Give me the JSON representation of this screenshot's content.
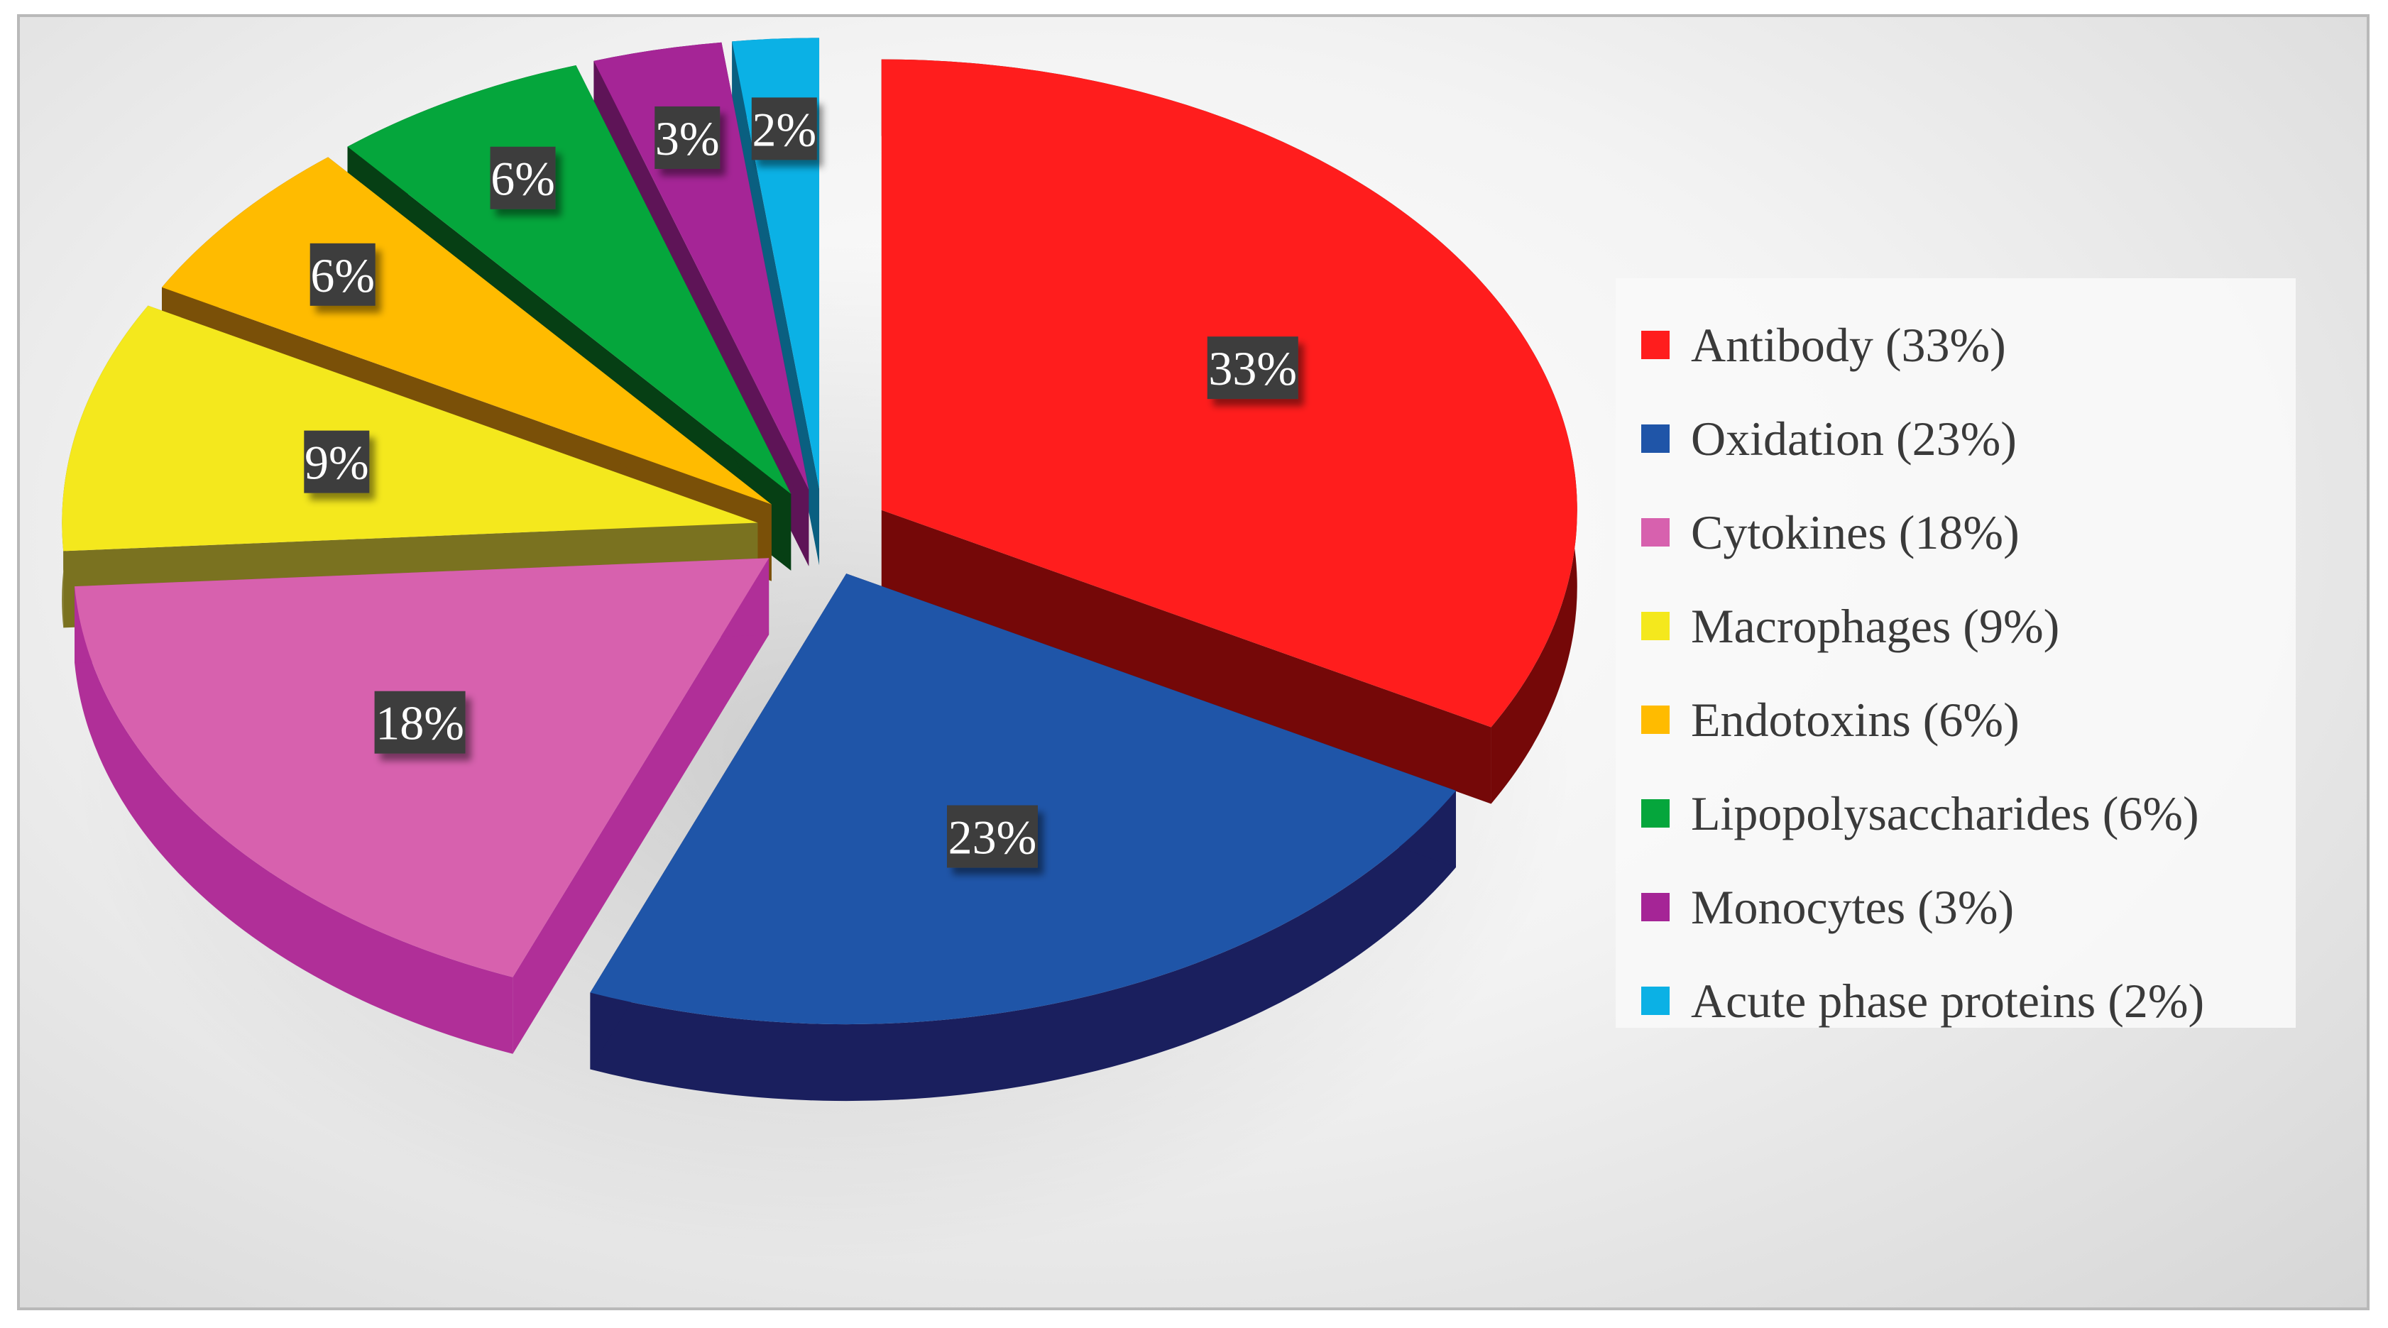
{
  "chart_data": {
    "type": "pie",
    "title": "",
    "categories": [
      "Antibody",
      "Oxidation",
      "Cytokines",
      "Macrophages",
      "Endotoxins",
      "Lipopolysaccharides",
      "Monocytes",
      "Acute phase proteins"
    ],
    "values": [
      33,
      23,
      18,
      9,
      6,
      6,
      3,
      2
    ],
    "data_labels": [
      "33%",
      "23%",
      "18%",
      "9%",
      "6%",
      "6%",
      "3%",
      "2%"
    ],
    "legend_entries": [
      "Antibody (33%)",
      "Oxidation (23%)",
      "Cytokines (18%)",
      "Macrophages (9%)",
      "Endotoxins (6%)",
      "Lipopolysaccharides (6%)",
      "Monocytes (3%)",
      "Acute phase proteins (2%)"
    ],
    "colors": [
      "#ff1d1d",
      "#1f55a8",
      "#d761ae",
      "#f4e81d",
      "#ffbb00",
      "#05a63c",
      "#a52596",
      "#0bb1e5"
    ],
    "side_colors": [
      "#750808",
      "#1a1f5e",
      "#b02f98",
      "#7a7220",
      "#7a5008",
      "#063f14",
      "#5e1457",
      "#0a5f80"
    ],
    "legend_position": "right",
    "style": "3d-exploded"
  }
}
